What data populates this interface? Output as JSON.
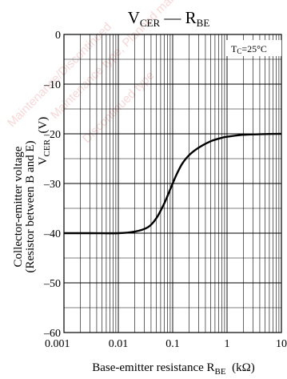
{
  "chart_data": {
    "type": "line",
    "title": "V",
    "title_sub": "CER",
    "title_dash": "—",
    "title2": "R",
    "title2_sub": "BE",
    "annotation": "Tc=25°C",
    "annotation_main": "T",
    "annotation_sub": "C",
    "annotation_rest": "=25°C",
    "xlabel_main": "Base-emitter resistance  R",
    "xlabel_sub": "BE",
    "xlabel_unit": "  (kΩ)",
    "ylabel_line1": "Collector-emitter voltage",
    "ylabel_var": "V",
    "ylabel_var_sub": "CER",
    "ylabel_unit": "  (V)",
    "ylabel_line2": "(Resistor between B and E)",
    "x_scale": "log",
    "xlim": [
      0.001,
      10
    ],
    "ylim": [
      -60,
      0
    ],
    "x_ticks": [
      0.001,
      0.01,
      0.1,
      1,
      10
    ],
    "x_tick_labels": [
      "0.001",
      "0.01",
      "0.1",
      "1",
      "10"
    ],
    "y_ticks": [
      0,
      -10,
      -20,
      -30,
      -40,
      -50,
      -60
    ],
    "y_tick_labels": [
      "0",
      "–10",
      "–20",
      "–30",
      "–40",
      "–50",
      "–60"
    ],
    "grid": true,
    "series": [
      {
        "x": [
          0.001,
          0.003,
          0.01,
          0.02,
          0.035,
          0.05,
          0.07,
          0.09,
          0.1,
          0.12,
          0.15,
          0.2,
          0.3,
          0.5,
          0.8,
          1,
          2,
          5,
          10
        ],
        "y": [
          -40,
          -40,
          -40,
          -39.7,
          -38.8,
          -37,
          -34,
          -31.2,
          -30,
          -28,
          -26,
          -24.3,
          -22.8,
          -21.5,
          -20.8,
          -20.6,
          -20.2,
          -20.05,
          -20
        ]
      }
    ],
    "watermark_lines": [
      "Maintenance/Discontinued",
      "Maintenance type, Planned maintenance type",
      "Discontinued type"
    ]
  }
}
